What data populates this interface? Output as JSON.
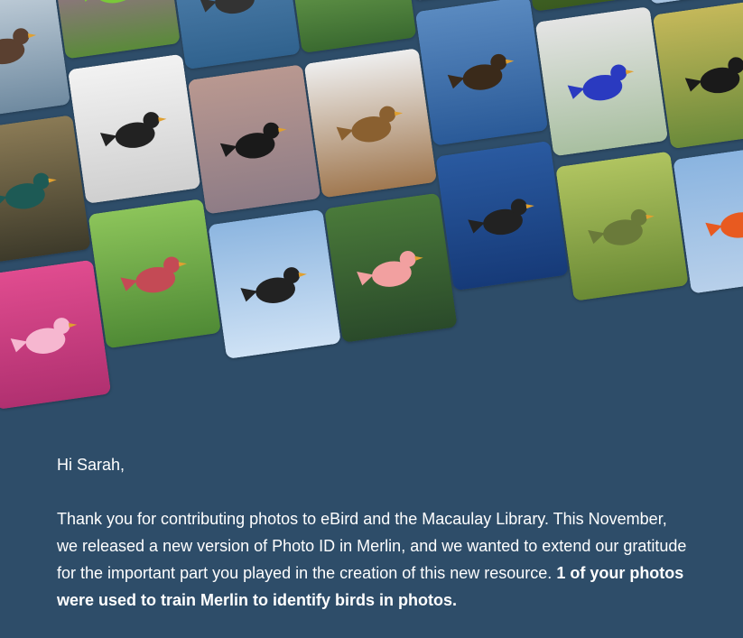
{
  "collage": {
    "photos": [
      {
        "icon": "waterbird-photo",
        "bg1": "#c9d5df",
        "bg2": "#6f8aa0",
        "bird": "#5a4030"
      },
      {
        "icon": "pheasant-photo",
        "bg1": "#8a7a55",
        "bg2": "#3d3a2a",
        "bird": "#1d5a55"
      },
      {
        "icon": "pink-flower-photo",
        "bg1": "#e04c8f",
        "bg2": "#b03070",
        "bird": "#f6b7d0"
      },
      {
        "icon": "green-bird-photo",
        "bg1": "#c560c8",
        "bg2": "#5a8a3a",
        "bird": "#7ac83a"
      },
      {
        "icon": "skimmer-photo",
        "bg1": "#f2f2f2",
        "bg2": "#cfcfcf",
        "bird": "#222222"
      },
      {
        "icon": "red-finch-photo",
        "bg1": "#8cc45a",
        "bg2": "#4f8a35",
        "bird": "#c44a55"
      },
      {
        "icon": "seabird-flight-photo",
        "bg1": "#5a8ab6",
        "bg2": "#30628e",
        "bird": "#333333"
      },
      {
        "icon": "flock-sky-photo",
        "bg1": "#b99890",
        "bg2": "#8e7c86",
        "bird": "#1a1a1a"
      },
      {
        "icon": "swallows-wire-photo",
        "bg1": "#8db6e0",
        "bg2": "#cfe2f5",
        "bird": "#222222"
      },
      {
        "icon": "white-eyes-photo",
        "bg1": "#8ac060",
        "bg2": "#3a6a30",
        "bird": "#b6c44a"
      },
      {
        "icon": "oxpecker-photo",
        "bg1": "#eeeeee",
        "bg2": "#a07850",
        "bird": "#8a6030"
      },
      {
        "icon": "cockatoo-photo",
        "bg1": "#4a7a3a",
        "bg2": "#2a4a2a",
        "bird": "#f2a0a0"
      },
      {
        "icon": "sky-photo",
        "bg1": "#a8b8c4",
        "bg2": "#8c9aa8",
        "bird": "#5a6a78"
      },
      {
        "icon": "petrel-wave-photo",
        "bg1": "#5a8ac0",
        "bg2": "#2a5a98",
        "bird": "#3a2a1a"
      },
      {
        "icon": "storm-petrel-photo",
        "bg1": "#2a5aa0",
        "bg2": "#163a78",
        "bird": "#222222"
      },
      {
        "icon": "red-flowers-photo",
        "bg1": "#5a8a35",
        "bg2": "#3a5a20",
        "bird": "#c02a3a"
      },
      {
        "icon": "blue-bird-photo",
        "bg1": "#e4e4e4",
        "bg2": "#a8bfa0",
        "bird": "#2a3ac0"
      },
      {
        "icon": "hummingbirds-photo",
        "bg1": "#b0c460",
        "bg2": "#6a8a35",
        "bird": "#6a7a3a"
      },
      {
        "icon": "thrush-rock-photo",
        "bg1": "#3a7ac8",
        "bg2": "#a8c4e0",
        "bird": "#a05a30"
      },
      {
        "icon": "blackbirds-photo",
        "bg1": "#c4b85a",
        "bg2": "#6a8a3a",
        "bird": "#1a1a1a"
      },
      {
        "icon": "bishop-photo",
        "bg1": "#8ab4e0",
        "bg2": "#b8d0ea",
        "bird": "#e85a20"
      },
      {
        "icon": "lorikeets-photo",
        "bg1": "#c4d8e0",
        "bg2": "#6a8a3a",
        "bird": "#3a8a2a"
      }
    ]
  },
  "message": {
    "greeting": "Hi Sarah,",
    "body": "Thank you for contributing photos to eBird and the Macaulay Library. This November, we released a new version of Photo ID in Merlin, and we wanted to extend our gratitude for the important part you played in the creation of this new resource. ",
    "highlight": "1 of your photos were used to train Merlin to identify birds in photos."
  }
}
